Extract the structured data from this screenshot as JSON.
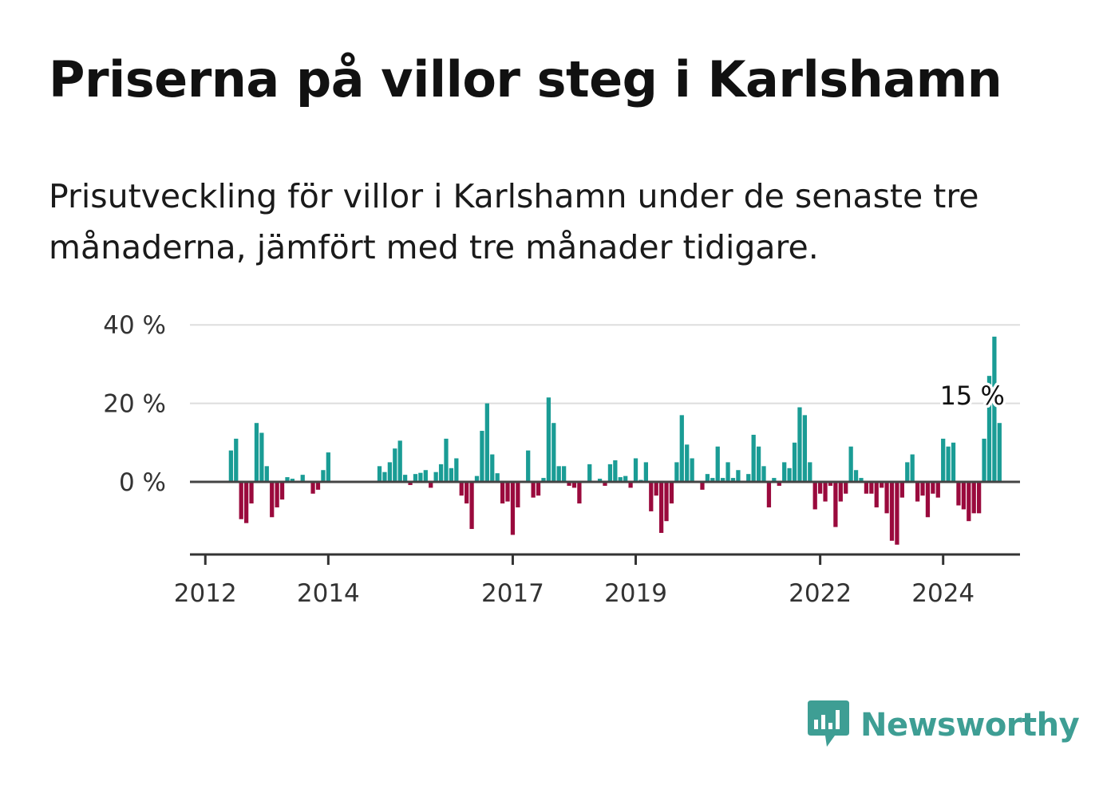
{
  "title": "Priserna på villor steg i Karlshamn",
  "subtitle": "Prisutveckling för villor i Karlshamn under de senaste tre månaderna, jämfört med tre månader tidigare.",
  "brand": {
    "name": "Newsworthy",
    "icon": "newsworthy-logo-icon"
  },
  "colors": {
    "positive": "#1a9c95",
    "negative": "#9a0a3d",
    "grid": "#dddddd",
    "axis": "#333333",
    "brand": "#3e9e94"
  },
  "chart_data": {
    "type": "bar",
    "title": "",
    "xlabel": "",
    "ylabel": "",
    "ylim": [
      -18,
      42
    ],
    "x_range": [
      "2011-10",
      "2025-04"
    ],
    "y_ticks": [
      {
        "value": 40,
        "label": "40 %"
      },
      {
        "value": 20,
        "label": "20 %"
      },
      {
        "value": 0,
        "label": "0 %"
      }
    ],
    "x_ticks": [
      {
        "date": "2012-01",
        "label": "2012"
      },
      {
        "date": "2014-01",
        "label": "2014"
      },
      {
        "date": "2017-01",
        "label": "2017"
      },
      {
        "date": "2019-01",
        "label": "2019"
      },
      {
        "date": "2022-01",
        "label": "2022"
      },
      {
        "date": "2024-01",
        "label": "2024"
      }
    ],
    "grid": "horizontal",
    "annotation": {
      "label": "15 %",
      "date": "2024-07",
      "value": 15
    },
    "series": [
      {
        "start": "2012-06",
        "values": [
          8,
          11,
          -9.5,
          -10.5,
          -5.5,
          15,
          12.5,
          4,
          -9,
          -6.5,
          -4.5,
          1.2,
          0.8,
          0.2,
          1.8,
          0.3,
          -3,
          -2,
          3,
          7.5,
          null,
          null,
          null,
          null,
          null,
          null,
          null,
          null,
          null,
          4,
          2.5,
          5,
          8.5,
          10.5,
          1.8,
          -0.8,
          2,
          2.3,
          3,
          -1.5,
          2.5,
          4.5,
          11,
          3.5,
          6,
          -3.5,
          -5.5,
          -12,
          1.5,
          13,
          20,
          7,
          2.2,
          -5.5,
          -5,
          -13.5,
          -6.5,
          0.3,
          8,
          -4,
          -3.5,
          1,
          21.5,
          15,
          4,
          4,
          -1,
          -1.5,
          -5.5,
          0.3,
          4.5,
          0.2,
          0.8,
          -1,
          4.5,
          5.5,
          1.2,
          1.5,
          -1.5,
          6,
          0.5,
          5,
          -7.5,
          -3.5,
          -13,
          -10,
          -5.5,
          5,
          17,
          9.5,
          6,
          0.3,
          -2,
          2,
          1,
          9,
          1,
          5,
          1,
          3,
          0.3,
          2,
          12,
          9,
          4,
          -6.5,
          1,
          -1,
          5,
          3.5,
          10,
          19,
          17,
          5,
          -7,
          -3,
          -5,
          -1,
          -11.5,
          -5,
          -3,
          9,
          3,
          1,
          -3,
          -3,
          -6.5,
          -1.5,
          -8,
          -15,
          -16,
          -4,
          5,
          7,
          -5,
          -3.5,
          -9,
          -3,
          -4,
          11,
          9,
          10,
          -6,
          -7,
          -10,
          -8,
          -8,
          11,
          27,
          37,
          15
        ]
      }
    ]
  }
}
